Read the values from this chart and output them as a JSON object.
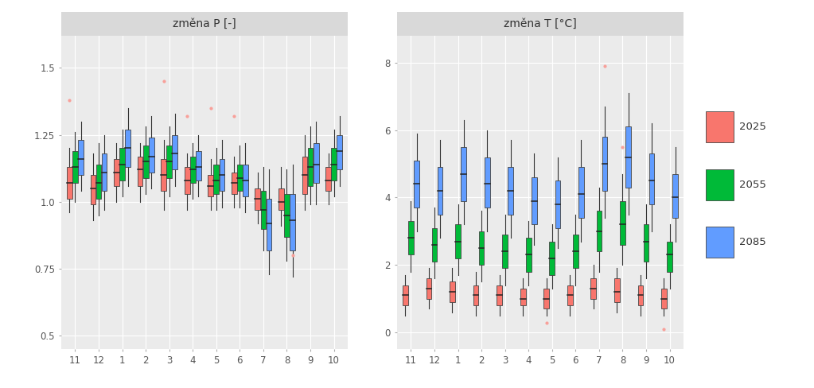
{
  "title_p": "změna P [-]",
  "title_t": "změna T [°C]",
  "months": [
    11,
    12,
    1,
    2,
    3,
    4,
    5,
    6,
    7,
    8,
    9,
    10
  ],
  "years": [
    "2025",
    "2055",
    "2085"
  ],
  "colors": {
    "2025": "#F8766D",
    "2055": "#00BA38",
    "2085": "#619CFF"
  },
  "fig_bg": "#FFFFFF",
  "panel_bg": "#EBEBEB",
  "strip_bg": "#D9D9D9",
  "grid_color": "#FFFFFF",
  "ylim_p": [
    0.45,
    1.62
  ],
  "yticks_p": [
    0.5,
    0.75,
    1.0,
    1.25,
    1.5
  ],
  "ylim_t": [
    -0.5,
    8.8
  ],
  "yticks_t": [
    0,
    2,
    4,
    6,
    8
  ],
  "p_data": {
    "2025": {
      "11": [
        0.96,
        1.01,
        1.07,
        1.13,
        1.2
      ],
      "12": [
        0.93,
        0.99,
        1.05,
        1.1,
        1.18
      ],
      "1": [
        1.0,
        1.06,
        1.11,
        1.16,
        1.22
      ],
      "2": [
        1.0,
        1.06,
        1.12,
        1.17,
        1.22
      ],
      "3": [
        0.97,
        1.04,
        1.1,
        1.16,
        1.23
      ],
      "4": [
        0.97,
        1.03,
        1.08,
        1.13,
        1.18
      ],
      "5": [
        0.97,
        1.02,
        1.06,
        1.1,
        1.16
      ],
      "6": [
        0.98,
        1.03,
        1.07,
        1.11,
        1.17
      ],
      "7": [
        0.92,
        0.97,
        1.01,
        1.05,
        1.11
      ],
      "8": [
        0.91,
        0.97,
        1.0,
        1.05,
        1.13
      ],
      "9": [
        0.97,
        1.03,
        1.1,
        1.17,
        1.25
      ],
      "10": [
        0.99,
        1.04,
        1.08,
        1.13,
        1.18
      ]
    },
    "2055": {
      "11": [
        1.0,
        1.07,
        1.13,
        1.19,
        1.26
      ],
      "12": [
        0.95,
        1.01,
        1.07,
        1.14,
        1.22
      ],
      "1": [
        1.02,
        1.08,
        1.14,
        1.2,
        1.27
      ],
      "2": [
        1.03,
        1.09,
        1.15,
        1.21,
        1.28
      ],
      "3": [
        1.02,
        1.09,
        1.15,
        1.21,
        1.28
      ],
      "4": [
        1.01,
        1.07,
        1.12,
        1.17,
        1.22
      ],
      "5": [
        0.97,
        1.03,
        1.08,
        1.14,
        1.2
      ],
      "6": [
        0.98,
        1.04,
        1.09,
        1.14,
        1.21
      ],
      "7": [
        0.82,
        0.9,
        0.97,
        1.04,
        1.13
      ],
      "8": [
        0.78,
        0.87,
        0.95,
        1.03,
        1.12
      ],
      "9": [
        0.99,
        1.06,
        1.13,
        1.2,
        1.28
      ],
      "10": [
        1.02,
        1.08,
        1.14,
        1.2,
        1.27
      ]
    },
    "2085": {
      "11": [
        1.04,
        1.1,
        1.16,
        1.23,
        1.3
      ],
      "12": [
        0.97,
        1.04,
        1.11,
        1.18,
        1.25
      ],
      "1": [
        1.06,
        1.13,
        1.2,
        1.27,
        1.35
      ],
      "2": [
        1.05,
        1.11,
        1.17,
        1.24,
        1.32
      ],
      "3": [
        1.06,
        1.12,
        1.18,
        1.25,
        1.33
      ],
      "4": [
        1.02,
        1.08,
        1.13,
        1.19,
        1.25
      ],
      "5": [
        0.98,
        1.04,
        1.1,
        1.16,
        1.23
      ],
      "6": [
        0.96,
        1.02,
        1.08,
        1.14,
        1.22
      ],
      "7": [
        0.73,
        0.82,
        0.92,
        1.01,
        1.12
      ],
      "8": [
        0.72,
        0.82,
        0.93,
        1.03,
        1.14
      ],
      "9": [
        0.99,
        1.07,
        1.14,
        1.22,
        1.3
      ],
      "10": [
        1.06,
        1.12,
        1.19,
        1.25,
        1.32
      ]
    }
  },
  "t_data": {
    "2025": {
      "11": [
        0.5,
        0.8,
        1.1,
        1.4,
        1.7
      ],
      "12": [
        0.7,
        1.0,
        1.3,
        1.6,
        1.9
      ],
      "1": [
        0.6,
        0.9,
        1.2,
        1.5,
        1.9
      ],
      "2": [
        0.5,
        0.8,
        1.1,
        1.4,
        1.8
      ],
      "3": [
        0.5,
        0.8,
        1.1,
        1.4,
        1.7
      ],
      "4": [
        0.5,
        0.8,
        1.0,
        1.3,
        1.6
      ],
      "5": [
        0.5,
        0.7,
        1.0,
        1.3,
        1.6
      ],
      "6": [
        0.5,
        0.8,
        1.1,
        1.4,
        1.7
      ],
      "7": [
        0.7,
        1.0,
        1.3,
        1.6,
        2.0
      ],
      "8": [
        0.6,
        0.9,
        1.2,
        1.6,
        1.9
      ],
      "9": [
        0.5,
        0.8,
        1.1,
        1.4,
        1.7
      ],
      "10": [
        0.5,
        0.7,
        1.0,
        1.3,
        1.6
      ]
    },
    "2055": {
      "11": [
        1.8,
        2.3,
        2.8,
        3.3,
        3.9
      ],
      "12": [
        1.6,
        2.1,
        2.6,
        3.1,
        3.7
      ],
      "1": [
        1.7,
        2.2,
        2.7,
        3.2,
        3.8
      ],
      "2": [
        1.5,
        2.0,
        2.5,
        3.0,
        3.6
      ],
      "3": [
        1.4,
        1.9,
        2.4,
        2.9,
        3.5
      ],
      "4": [
        1.4,
        1.8,
        2.3,
        2.8,
        3.3
      ],
      "5": [
        1.3,
        1.7,
        2.2,
        2.7,
        3.2
      ],
      "6": [
        1.4,
        1.9,
        2.4,
        2.9,
        3.5
      ],
      "7": [
        1.8,
        2.4,
        3.0,
        3.6,
        4.3
      ],
      "8": [
        2.0,
        2.6,
        3.2,
        3.9,
        4.7
      ],
      "9": [
        1.6,
        2.1,
        2.7,
        3.2,
        3.8
      ],
      "10": [
        1.3,
        1.8,
        2.3,
        2.7,
        3.2
      ]
    },
    "2085": {
      "11": [
        3.0,
        3.7,
        4.4,
        5.1,
        5.9
      ],
      "12": [
        2.8,
        3.5,
        4.2,
        4.9,
        5.7
      ],
      "1": [
        3.2,
        3.9,
        4.7,
        5.5,
        6.3
      ],
      "2": [
        3.0,
        3.7,
        4.4,
        5.2,
        6.0
      ],
      "3": [
        2.8,
        3.5,
        4.2,
        4.9,
        5.7
      ],
      "4": [
        2.6,
        3.2,
        3.9,
        4.6,
        5.3
      ],
      "5": [
        2.5,
        3.1,
        3.8,
        4.5,
        5.2
      ],
      "6": [
        2.7,
        3.4,
        4.1,
        4.9,
        5.7
      ],
      "7": [
        3.4,
        4.2,
        5.0,
        5.8,
        6.7
      ],
      "8": [
        3.5,
        4.3,
        5.2,
        6.1,
        7.1
      ],
      "9": [
        3.0,
        3.8,
        4.5,
        5.3,
        6.2
      ],
      "10": [
        2.7,
        3.4,
        4.0,
        4.7,
        5.5
      ]
    }
  },
  "p_outliers": {
    "2025": {
      "11": [
        1.38
      ],
      "12": [],
      "1": [],
      "2": [],
      "3": [
        1.45
      ],
      "4": [
        1.32
      ],
      "5": [
        1.35
      ],
      "6": [
        1.32
      ],
      "7": [],
      "8": [],
      "9": [],
      "10": []
    },
    "2055": {
      "11": [],
      "12": [],
      "1": [],
      "2": [],
      "3": [],
      "4": [],
      "5": [],
      "6": [],
      "7": [],
      "8": [],
      "9": [],
      "10": []
    },
    "2085": {
      "11": [],
      "12": [],
      "1": [],
      "2": [],
      "3": [],
      "4": [],
      "5": [],
      "6": [],
      "7": [],
      "8": [
        0.8
      ],
      "9": [],
      "10": []
    }
  },
  "t_outliers": {
    "2025": {
      "11": [],
      "12": [],
      "1": [],
      "2": [],
      "3": [],
      "4": [],
      "5": [
        0.28
      ],
      "6": [],
      "7": [],
      "8": [],
      "9": [],
      "10": [
        0.1
      ]
    },
    "2055": {
      "11": [],
      "12": [],
      "1": [],
      "2": [],
      "3": [],
      "4": [],
      "5": [],
      "6": [],
      "7": [],
      "8": [
        5.5
      ],
      "9": [],
      "10": []
    },
    "2085": {
      "11": [],
      "12": [],
      "1": [],
      "2": [],
      "3": [],
      "4": [],
      "5": [],
      "6": [],
      "7": [
        7.9
      ],
      "8": [],
      "9": [],
      "10": []
    }
  },
  "outlier_color": "#F8A09A",
  "legend_labels": [
    "2025",
    "2055",
    "2085"
  ]
}
